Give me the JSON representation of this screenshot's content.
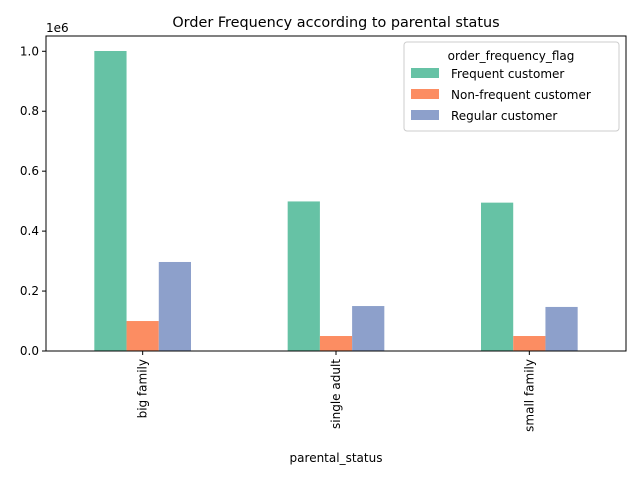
{
  "chart_data": {
    "type": "bar",
    "title": "Order Frequency according to parental status",
    "xlabel": "parental_status",
    "ylabel": "",
    "y_offset_label": "1e6",
    "categories": [
      "big family",
      "single adult",
      "small family"
    ],
    "series": [
      {
        "name": "Frequent customer",
        "color": "#66c2a5",
        "values": [
          1001000,
          499000,
          495000
        ]
      },
      {
        "name": "Non-frequent customer",
        "color": "#fc8d62",
        "values": [
          100000,
          50000,
          50000
        ]
      },
      {
        "name": "Regular customer",
        "color": "#8da0cb",
        "values": [
          297000,
          150000,
          147000
        ]
      }
    ],
    "ylim": [
      0,
      1051000
    ],
    "yticks": [
      0,
      200000,
      400000,
      600000,
      800000,
      1000000
    ],
    "ytick_labels": [
      "0.0",
      "0.2",
      "0.4",
      "0.6",
      "0.8",
      "1.0"
    ],
    "legend": {
      "title": "order_frequency_flag",
      "placement": "upper right"
    },
    "grid": false
  }
}
